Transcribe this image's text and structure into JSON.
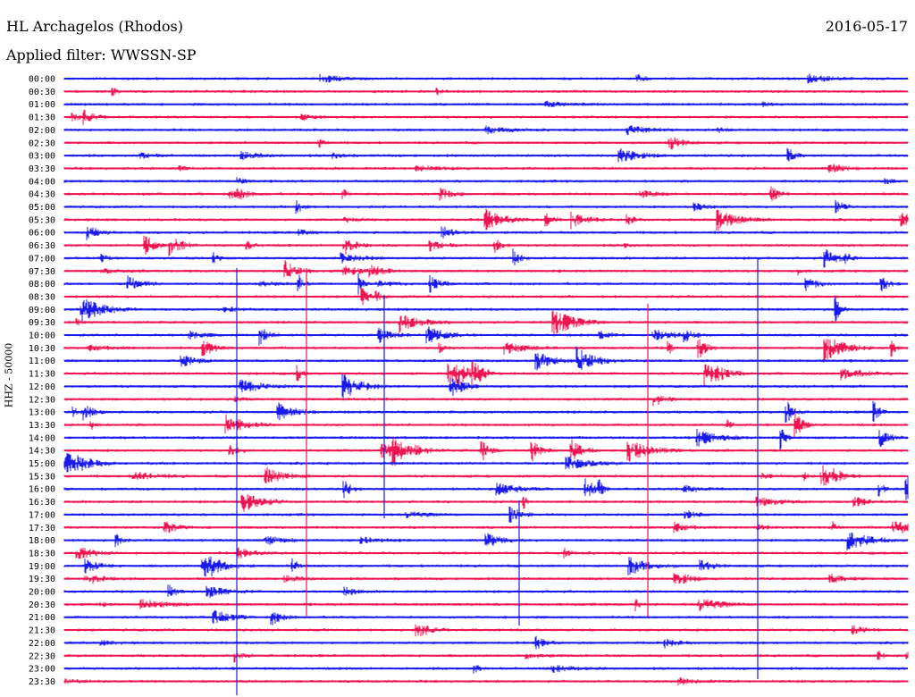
{
  "header": {
    "station": "HL Archagelos (Rhodos)",
    "date": "2016-05-17",
    "filter_label": "Applied filter: WWSSN-SP"
  },
  "colors": {
    "even_row": "#1a1aee",
    "odd_row": "#ee1550"
  },
  "chart_data": {
    "type": "line",
    "title": "",
    "ylabel": "HHZ - 50000",
    "row_labels": [
      "00:00",
      "00:30",
      "01:00",
      "01:30",
      "02:00",
      "02:30",
      "03:00",
      "03:30",
      "04:00",
      "04:30",
      "05:00",
      "05:30",
      "06:00",
      "06:30",
      "07:00",
      "07:30",
      "08:00",
      "08:30",
      "09:00",
      "09:30",
      "10:00",
      "10:30",
      "11:00",
      "11:30",
      "12:00",
      "12:30",
      "13:00",
      "13:30",
      "14:00",
      "14:30",
      "15:00",
      "15:30",
      "16:00",
      "16:30",
      "17:00",
      "17:30",
      "18:00",
      "18:30",
      "19:00",
      "19:30",
      "20:00",
      "20:30",
      "21:00",
      "21:30",
      "22:00",
      "22:30",
      "23:00",
      "23:30"
    ],
    "row_duration_minutes": 30,
    "series_colors_alternate": [
      "blue",
      "red"
    ]
  }
}
